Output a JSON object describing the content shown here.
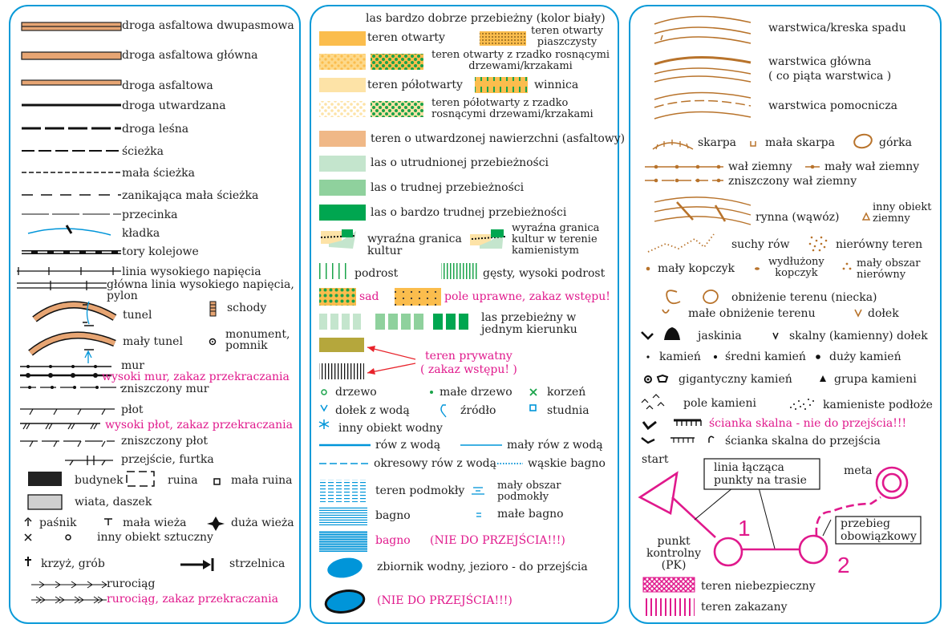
{
  "colors": {
    "border": "#0a9ad8",
    "road": "#e7a573",
    "contour": "#b8732b",
    "pink": "#e0198c",
    "open": "#fbbd4d",
    "halfopen": "#fde3a7",
    "paved": "#f0b887",
    "forest1": "#c4e5cd",
    "forest2": "#8fd19d",
    "forest3": "#00a650",
    "water": "#0095d9"
  },
  "left": {
    "roads": [
      "droga asfaltowa dwupasmowa",
      "droga asfaltowa główna",
      "droga asfaltowa",
      "droga utwardzana",
      "droga leśna",
      "ścieżka",
      "mała ścieżka",
      "zanikająca mała ścieżka",
      "przecinka",
      "kładka",
      "tory kolejowe",
      "linia wysokiego napięcia",
      "główna linia wysokiego napięcia,\npylon"
    ],
    "tunel": "tunel",
    "maly_tunel": "mały tunel",
    "schody": "schody",
    "monument": "monument,\npomnik",
    "mur": "mur",
    "wysoki_mur": "wysoki mur, zakaz przekraczania",
    "zniszczony_mur": "zniszczony mur",
    "plot": "płot",
    "wysoki_plot": "wysoki płot, zakaz przekraczania",
    "zniszczony_plot": "zniszczony płot",
    "przejscie": "przejście, furtka",
    "budynek": "budynek",
    "ruina": "ruina",
    "mala_ruina": "mała ruina",
    "wiata": "wiata, daszek",
    "pasnik": "paśnik",
    "mala_wieza": "mała wieża",
    "duza_wieza": "duża wieża",
    "inny_sztuczny": "inny obiekt sztuczny",
    "krzyz": "krzyż, grób",
    "strzelnica": "strzelnica",
    "rurociag": "rurociąg",
    "rurociag_zakaz": "rurociąg, zakaz przekraczania"
  },
  "middle": {
    "header": "las bardzo dobrze przebieżny (kolor biały)",
    "teren_otwarty": "teren otwarty",
    "piaszczysty": "teren otwarty\npiaszczysty",
    "otwarty_drzewa": "teren otwarty z rzadko rosnącymi\ndrzewami/krzakami",
    "polotwarty": "teren półotwarty",
    "winnica": "winnica",
    "polotwarty_drzewa": "teren półotwarty z rzadko\nrosnącymi drzewami/krzakami",
    "utwardzony": "teren o utwardzonej nawierzchni (asfaltowy)",
    "las1": "las o utrudnionej przebieżności",
    "las2": "las o trudnej przebieżności",
    "las3": "las o bardzo trudnej przebieżności",
    "granica": "wyraźna granica\nkultur",
    "granica_kam": "wyraźna granica\nkultur w terenie\nkamienistym",
    "podrost": "podrost",
    "gesty_podrost": "gęsty, wysoki podrost",
    "sad": "sad",
    "pole": "pole uprawne, zakaz wstępu!",
    "kierunek": "las przebieżny w\njednym kierunku",
    "prywatny": "teren prywatny\n( zakaz wstępu! )",
    "drzewo": "drzewo",
    "male_drzewo": "małe drzewo",
    "korzen": "korzeń",
    "dolek_woda": "dołek z wodą",
    "zrodlo": "źródło",
    "studnia": "studnia",
    "inny_wodny": "inny obiekt wodny",
    "row_woda": "rów z wodą",
    "maly_row": "mały rów z wodą",
    "okresowy": "okresowy rów z wodą",
    "waskie_bagno": "wąskie bagno",
    "podmokly": "teren podmokły",
    "maly_podmokly": "mały obszar\npodmokły",
    "bagno": "bagno",
    "male_bagno": "małe bagno",
    "bagno_np": "bagno",
    "nie_do": "(NIE DO PRZEJŚCIA!!!)",
    "zbiornik": "zbiornik wodny, jezioro - do przejścia",
    "zbiornik_np": "(NIE DO PRZEJŚCIA!!!)"
  },
  "right": {
    "warstwica": "warstwica/kreska spadu",
    "glowna": "warstwica główna\n( co piąta warstwica )",
    "pomocnicza": "warstwica pomocnicza",
    "skarpa": "skarpa",
    "mala_skarpa": "mała skarpa",
    "gorka": "górka",
    "wal": "wał ziemny",
    "maly_wal": "mały wał ziemny",
    "zniszczony_wal": "zniszczony wał ziemny",
    "rynna": "rynna (wąwóz)",
    "inny_ziemny": "inny obiekt\nziemny",
    "suchy_row": "suchy rów",
    "nierowny": "nierówny teren",
    "kopczyk": "mały kopczyk",
    "wydluzony": "wydłużony\nkopczyk",
    "maly_nierowny": "mały obszar\nnierówny",
    "obnizenie": "obniżenie terenu (niecka)",
    "male_obnizenie": "małe obniżenie terenu",
    "dolek": "dołek",
    "jaskinia": "jaskinia",
    "skalny_dolek": "skalny (kamienny) dołek",
    "kamien": "kamień",
    "sredni": "średni kamień",
    "duzy": "duży kamień",
    "gigantyczny": "gigantyczny kamień",
    "grupa": "grupa kamieni",
    "pole_kamieni": "pole kamieni",
    "kamieniste": "kamieniste podłoże",
    "scianka_np": "ścianka skalna - nie do przejścia!!!",
    "scianka": "ścianka skalna do przejścia",
    "start": "start",
    "linia": "linia łącząca\npunkty na trasie",
    "meta": "meta",
    "num1": "1",
    "num2": "2",
    "pk": "punkt\nkontrolny\n(PK)",
    "obowiazkowy": "przebieg\nobowiązkowy",
    "niebezpieczny": "teren niebezpieczny",
    "zakazany": "teren zakazany"
  }
}
